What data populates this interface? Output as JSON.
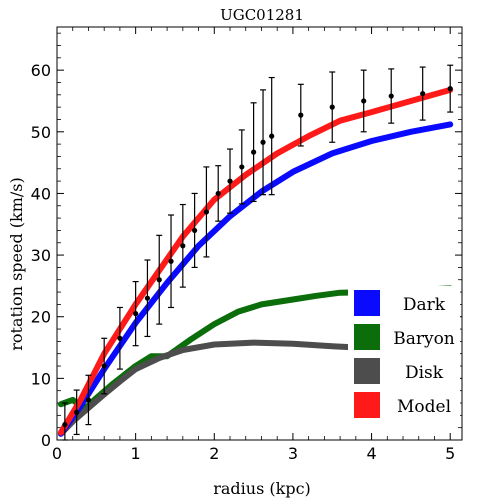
{
  "chart_data": {
    "type": "line",
    "title": "UGC01281",
    "xlabel": "radius (kpc)",
    "ylabel": "rotation speed (km/s)",
    "xlim": [
      0,
      5.15
    ],
    "ylim": [
      0,
      67
    ],
    "xticks": [
      "0",
      "1",
      "2",
      "3",
      "4",
      "5"
    ],
    "yticks": [
      "0",
      "10",
      "20",
      "30",
      "40",
      "50",
      "60"
    ],
    "legend_position": "bottom-right",
    "series": [
      {
        "name": "Dark",
        "color": "#0a0aff",
        "x": [
          0.05,
          0.3,
          0.6,
          1.0,
          1.4,
          1.8,
          2.2,
          2.6,
          3.0,
          3.5,
          4.0,
          4.5,
          5.0
        ],
        "y": [
          1.0,
          5.5,
          11.5,
          19.0,
          25.5,
          31.5,
          36.3,
          40.3,
          43.5,
          46.5,
          48.5,
          50.0,
          51.2
        ]
      },
      {
        "name": "Baryon",
        "color": "#0b6e0b",
        "x": [
          0.05,
          0.2,
          0.35,
          0.5,
          0.7,
          1.0,
          1.2,
          1.4,
          1.7,
          2.0,
          2.3,
          2.6,
          3.0,
          3.3,
          3.6,
          4.0,
          4.5,
          5.0
        ],
        "y": [
          5.8,
          6.5,
          5.0,
          6.8,
          9.0,
          12.0,
          13.6,
          13.6,
          16.3,
          18.8,
          20.8,
          22.0,
          22.8,
          23.4,
          23.9,
          24.0,
          24.3,
          24.6
        ]
      },
      {
        "name": "Disk",
        "color": "#4d4d4d",
        "x": [
          0.05,
          0.2,
          0.4,
          0.6,
          0.8,
          1.0,
          1.3,
          1.6,
          2.0,
          2.5,
          3.0,
          3.5,
          4.0,
          4.5,
          5.0
        ],
        "y": [
          1.0,
          3.0,
          5.2,
          7.4,
          9.5,
          11.5,
          13.3,
          14.6,
          15.5,
          15.8,
          15.6,
          15.2,
          14.9,
          14.5,
          14.2
        ]
      },
      {
        "name": "Model",
        "color": "#ff1a1a",
        "x": [
          0.05,
          0.3,
          0.6,
          1.0,
          1.3,
          1.6,
          2.0,
          2.4,
          2.8,
          3.2,
          3.6,
          4.0,
          4.5,
          5.0
        ],
        "y": [
          1.2,
          6.5,
          14.0,
          22.0,
          27.5,
          33.0,
          39.0,
          43.0,
          46.5,
          49.3,
          51.8,
          53.2,
          55.0,
          56.8
        ]
      }
    ],
    "observations": {
      "name": "data",
      "color": "#000000",
      "x": [
        0.1,
        0.25,
        0.4,
        0.6,
        0.8,
        1.0,
        1.15,
        1.3,
        1.45,
        1.6,
        1.75,
        1.9,
        2.05,
        2.2,
        2.35,
        2.5,
        2.62,
        2.73,
        3.1,
        3.5,
        3.9,
        4.25,
        4.65,
        5.0
      ],
      "y": [
        2.5,
        4.5,
        6.5,
        12.0,
        16.5,
        20.5,
        23.0,
        26.0,
        29.0,
        31.5,
        34.0,
        37.0,
        40.0,
        42.0,
        44.3,
        46.7,
        48.3,
        49.3,
        52.7,
        54.0,
        55.0,
        55.8,
        56.2,
        57.0
      ],
      "err": [
        3.5,
        3.6,
        4.0,
        4.5,
        5.0,
        5.2,
        6.2,
        7.2,
        7.5,
        6.7,
        6.0,
        7.3,
        4.5,
        5.2,
        6.0,
        8.0,
        8.5,
        9.5,
        5.0,
        5.7,
        5.0,
        4.4,
        4.3,
        3.8
      ]
    }
  }
}
